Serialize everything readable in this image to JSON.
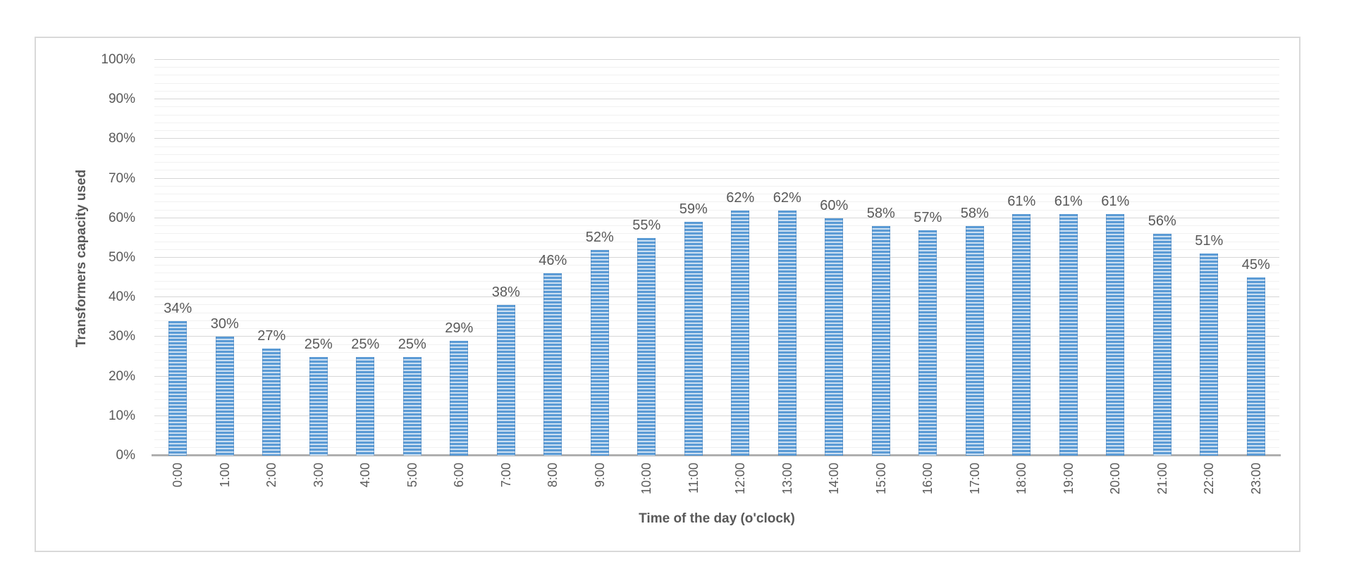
{
  "chart_data": {
    "type": "bar",
    "title": "",
    "xlabel": "Time of the day (o'clock)",
    "ylabel": "Transformers capacity used",
    "categories": [
      "0:00",
      "1:00",
      "2:00",
      "3:00",
      "4:00",
      "5:00",
      "6:00",
      "7:00",
      "8:00",
      "9:00",
      "10:00",
      "11:00",
      "12:00",
      "13:00",
      "14:00",
      "15:00",
      "16:00",
      "17:00",
      "18:00",
      "19:00",
      "20:00",
      "21:00",
      "22:00",
      "23:00"
    ],
    "values": [
      34,
      30,
      27,
      25,
      25,
      25,
      29,
      38,
      46,
      52,
      55,
      59,
      62,
      62,
      60,
      58,
      57,
      58,
      61,
      61,
      61,
      56,
      51,
      45
    ],
    "data_labels": [
      "34%",
      "30%",
      "27%",
      "25%",
      "25%",
      "25%",
      "29%",
      "38%",
      "46%",
      "52%",
      "55%",
      "59%",
      "62%",
      "62%",
      "60%",
      "58%",
      "57%",
      "58%",
      "61%",
      "61%",
      "61%",
      "56%",
      "51%",
      "45%"
    ],
    "y_tick_labels": [
      "100%",
      "90%",
      "80%",
      "70%",
      "60%",
      "50%",
      "40%",
      "30%",
      "20%",
      "10%",
      "0%"
    ],
    "ylim": [
      0,
      100
    ],
    "y_major_step": 10,
    "y_minor_step": 2,
    "grid": true,
    "legend_position": "none",
    "colors": {
      "bar_stripe_dark": "#5B9BD5",
      "bar_stripe_light": "#CDE0F2",
      "gridline_major": "#D6D6D6",
      "gridline_minor": "#F1F1F1",
      "axis_line": "#AFAFAF",
      "text": "#595959",
      "frame_border": "#D9D9D9"
    }
  }
}
